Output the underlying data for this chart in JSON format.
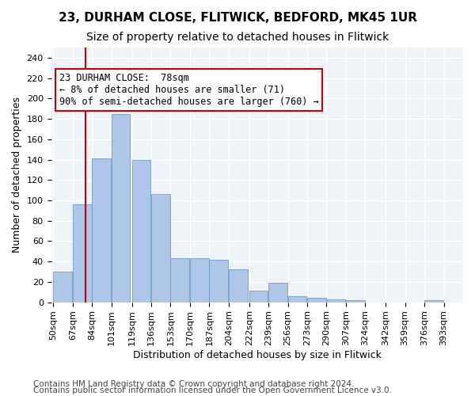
{
  "title1": "23, DURHAM CLOSE, FLITWICK, BEDFORD, MK45 1UR",
  "title2": "Size of property relative to detached houses in Flitwick",
  "xlabel": "Distribution of detached houses by size in Flitwick",
  "ylabel": "Number of detached properties",
  "bar_values": [
    30,
    96,
    141,
    185,
    140,
    106,
    43,
    43,
    42,
    32,
    11,
    19,
    6,
    4,
    3,
    2,
    0,
    0,
    0,
    2
  ],
  "bin_labels": [
    "50sqm",
    "67sqm",
    "84sqm",
    "101sqm",
    "119sqm",
    "136sqm",
    "153sqm",
    "170sqm",
    "187sqm",
    "204sqm",
    "222sqm",
    "239sqm",
    "256sqm",
    "273sqm",
    "290sqm",
    "307sqm",
    "324sqm",
    "342sqm",
    "359sqm",
    "376sqm",
    "393sqm"
  ],
  "bar_color": "#aec6e8",
  "bar_edge_color": "#5a8fc2",
  "property_line_x": 78,
  "bin_edges": [
    50,
    67,
    84,
    101,
    119,
    136,
    153,
    170,
    187,
    204,
    222,
    239,
    256,
    273,
    290,
    307,
    324,
    342,
    359,
    376,
    393
  ],
  "bin_width": 17,
  "annotation_text": "23 DURHAM CLOSE:  78sqm\n← 8% of detached houses are smaller (71)\n90% of semi-detached houses are larger (760) →",
  "vline_color": "#cc0000",
  "annotation_box_edge": "#cc0000",
  "ylim": [
    0,
    250
  ],
  "yticks": [
    0,
    20,
    40,
    60,
    80,
    100,
    120,
    140,
    160,
    180,
    200,
    220,
    240
  ],
  "footer1": "Contains HM Land Registry data © Crown copyright and database right 2024.",
  "footer2": "Contains public sector information licensed under the Open Government Licence v3.0.",
  "background_color": "#eef3f8",
  "grid_color": "#ffffff",
  "title1_fontsize": 11,
  "title2_fontsize": 10,
  "xlabel_fontsize": 9,
  "ylabel_fontsize": 9,
  "tick_fontsize": 8,
  "annotation_fontsize": 8.5,
  "footer_fontsize": 7.5
}
